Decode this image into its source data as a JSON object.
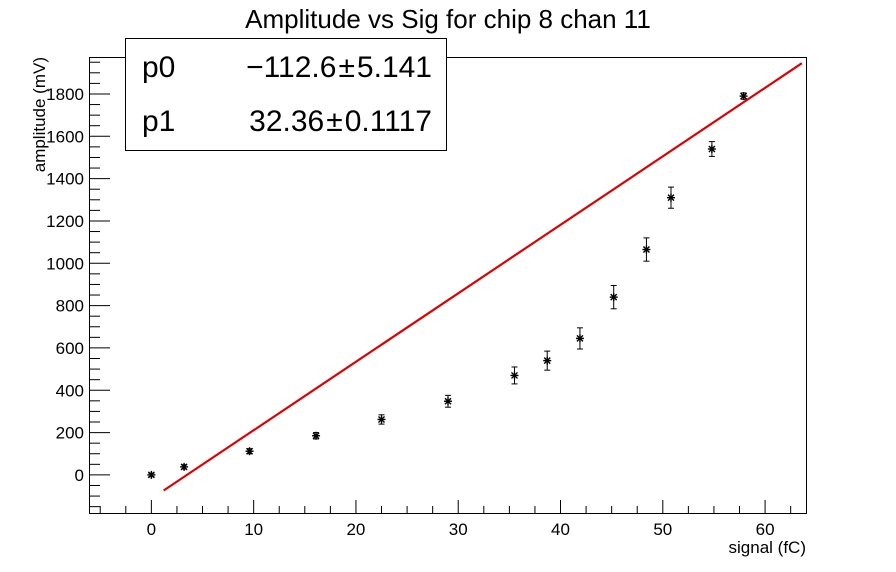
{
  "title": "Amplitude vs Sig for chip 8 chan 11",
  "stats": {
    "rows": [
      {
        "name": "p0",
        "value": "−112.6",
        "pm": "±",
        "error": "5.141"
      },
      {
        "name": "p1",
        "value": "32.36",
        "pm": "±",
        "error": "0.1117"
      }
    ]
  },
  "chart_data": {
    "type": "scatter",
    "title": "Amplitude vs Sig for chip 8 chan 11",
    "xlabel": "signal (fC)",
    "ylabel": "amplitude (mV)",
    "xlim": [
      -6,
      64
    ],
    "ylim": [
      -180,
      1970
    ],
    "xticks": [
      0,
      10,
      20,
      30,
      40,
      50,
      60
    ],
    "yticks": [
      0,
      200,
      400,
      600,
      800,
      1000,
      1200,
      1400,
      1600,
      1800
    ],
    "grid": false,
    "series": [
      {
        "marker": "asterisk",
        "color": "#000000",
        "points": [
          {
            "x": 0.0,
            "y": 0,
            "err": 8
          },
          {
            "x": 3.2,
            "y": 38,
            "err": 10
          },
          {
            "x": 9.6,
            "y": 112,
            "err": 12
          },
          {
            "x": 16.1,
            "y": 185,
            "err": 15
          },
          {
            "x": 22.5,
            "y": 262,
            "err": 22
          },
          {
            "x": 29.0,
            "y": 348,
            "err": 28
          },
          {
            "x": 35.5,
            "y": 470,
            "err": 40
          },
          {
            "x": 38.7,
            "y": 540,
            "err": 45
          },
          {
            "x": 41.9,
            "y": 645,
            "err": 50
          },
          {
            "x": 45.2,
            "y": 840,
            "err": 55
          },
          {
            "x": 48.4,
            "y": 1065,
            "err": 55
          },
          {
            "x": 50.8,
            "y": 1310,
            "err": 50
          },
          {
            "x": 54.8,
            "y": 1540,
            "err": 35
          },
          {
            "x": 57.9,
            "y": 1790,
            "err": 15
          }
        ]
      }
    ],
    "fit": {
      "color": "#e00000",
      "p0": -112.6,
      "p1": 32.36,
      "x_range": [
        1.2,
        63.6
      ]
    }
  }
}
